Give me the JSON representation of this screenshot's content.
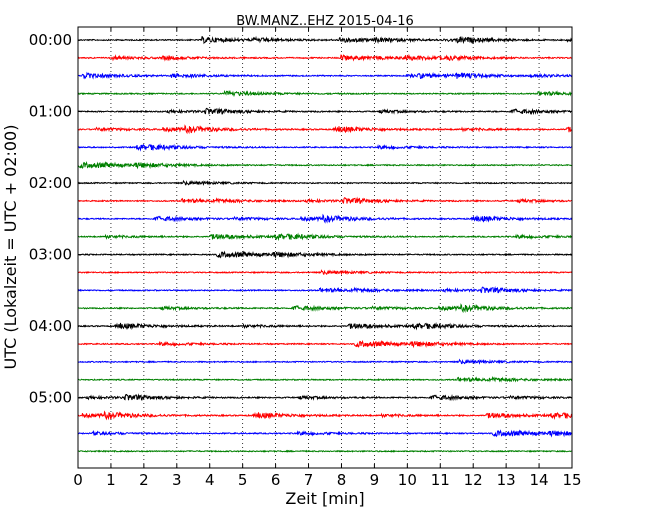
{
  "chart_data": {
    "type": "line",
    "title": "BW.MANZ..EHZ 2015-04-16",
    "xlabel": "Zeit  [min]",
    "ylabel": "UTC (Lokalzeit = UTC + 02:00)",
    "xlim": [
      0,
      15
    ],
    "xticks": [
      0,
      1,
      2,
      3,
      4,
      5,
      6,
      7,
      8,
      9,
      10,
      11,
      12,
      13,
      14,
      15
    ],
    "yticks": [
      "00:00",
      "01:00",
      "02:00",
      "03:00",
      "04:00",
      "05:00"
    ],
    "grid": "vertical dotted",
    "trace_interval_minutes": 15,
    "trace_count": 24,
    "trace_colors": [
      "#000000",
      "#ff0000",
      "#0000ff",
      "#008000"
    ]
  }
}
